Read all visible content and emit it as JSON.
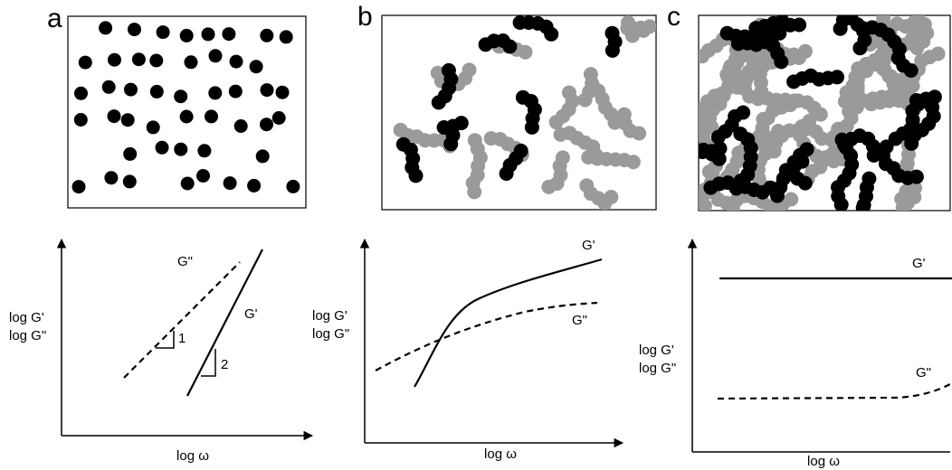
{
  "panels": [
    {
      "label": "a",
      "y_label": [
        "log G'",
        "log G\""
      ],
      "x_label": "log ω",
      "curve_labels": [
        "G\"",
        "G'"
      ],
      "slope_labels": [
        "1",
        "2"
      ]
    },
    {
      "label": "b",
      "y_label": [
        "log G'",
        "log G\""
      ],
      "x_label": "log ω",
      "curve_labels": [
        "G'",
        "G\""
      ]
    },
    {
      "label": "c",
      "y_label": [
        "log G'",
        "log G\""
      ],
      "x_label": "log ω",
      "curve_labels": [
        "G'",
        "G\""
      ]
    }
  ]
}
